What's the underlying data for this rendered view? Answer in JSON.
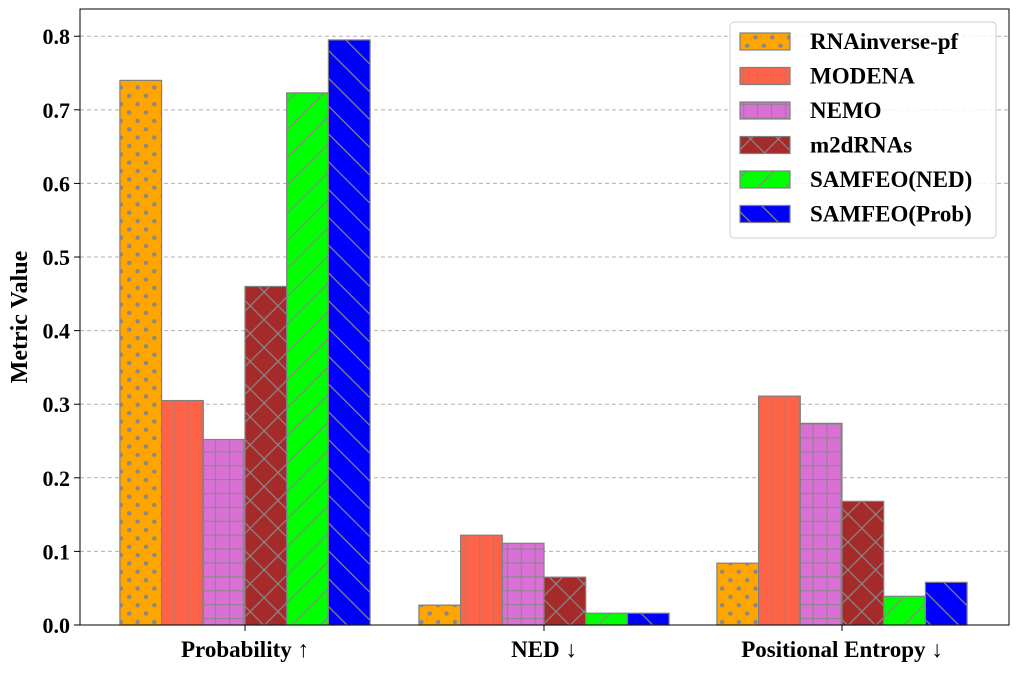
{
  "chart_data": {
    "type": "bar",
    "title": "",
    "xlabel": "",
    "ylabel": "Metric Value",
    "ylim": [
      0,
      0.837
    ],
    "yticks": [
      "0.0",
      "0.1",
      "0.2",
      "0.3",
      "0.4",
      "0.5",
      "0.6",
      "0.7",
      "0.8"
    ],
    "categories": [
      "Probability ↑",
      "NED ↓",
      "Positional Entropy ↓"
    ],
    "grid": "horizontal dashed",
    "legend_position": "top-right",
    "series": [
      {
        "name": "RNAinverse-pf",
        "color": "#FFA500",
        "hatch": "dots",
        "values": [
          0.74,
          0.027,
          0.084
        ]
      },
      {
        "name": "MODENA",
        "color": "#FF6347",
        "hatch": "vertical",
        "values": [
          0.305,
          0.122,
          0.311
        ]
      },
      {
        "name": "NEMO",
        "color": "#DA70D6",
        "hatch": "grid",
        "values": [
          0.252,
          0.111,
          0.274
        ]
      },
      {
        "name": "m2dRNAs",
        "color": "#A52A2A",
        "hatch": "cross",
        "values": [
          0.46,
          0.065,
          0.168
        ]
      },
      {
        "name": "SAMFEO(NED)",
        "color": "#00FF00",
        "hatch": "forward-diagonal",
        "values": [
          0.723,
          0.016,
          0.039
        ]
      },
      {
        "name": "SAMFEO(Prob)",
        "color": "#0000FF",
        "hatch": "back-diagonal",
        "values": [
          0.795,
          0.016,
          0.058
        ]
      }
    ]
  }
}
